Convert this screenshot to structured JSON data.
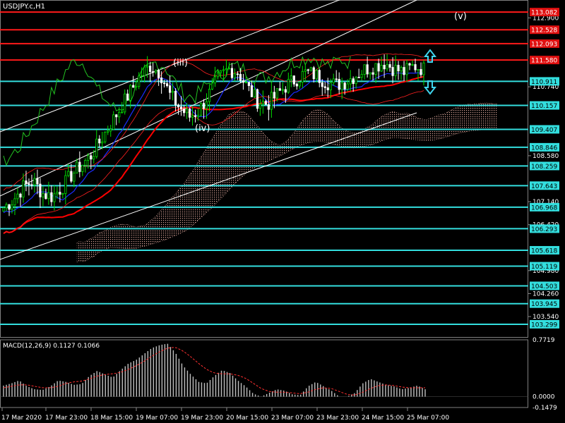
{
  "symbol": "USDJPY.c,H1",
  "chart_data": {
    "type": "candlestick",
    "title": "USDJPY.c,H1",
    "ylim": [
      102.9,
      113.35
    ],
    "y_ticks": [
      {
        "value": 112.9,
        "label": "112.900"
      },
      {
        "value": 110.74,
        "label": "110.740"
      },
      {
        "value": 108.58,
        "label": "108.580"
      },
      {
        "value": 107.14,
        "label": "107.140"
      },
      {
        "value": 106.42,
        "label": "106.420"
      },
      {
        "value": 104.98,
        "label": "104.980"
      },
      {
        "value": 104.26,
        "label": "104.260"
      },
      {
        "value": 103.54,
        "label": "103.540"
      }
    ],
    "red_levels": [
      {
        "value": 113.082,
        "label": "113.082"
      },
      {
        "value": 112.528,
        "label": "112.528"
      },
      {
        "value": 112.093,
        "label": "112.093"
      },
      {
        "value": 111.58,
        "label": "111.580"
      }
    ],
    "cyan_levels": [
      {
        "value": 110.911,
        "label": "110.911"
      },
      {
        "value": 110.157,
        "label": "110.157"
      },
      {
        "value": 109.407,
        "label": "109.407"
      },
      {
        "value": 108.846,
        "label": "108.846"
      },
      {
        "value": 108.259,
        "label": "108.259"
      },
      {
        "value": 107.643,
        "label": "107.643"
      },
      {
        "value": 106.968,
        "label": "106.968"
      },
      {
        "value": 106.293,
        "label": "106.293"
      },
      {
        "value": 105.618,
        "label": "105.618"
      },
      {
        "value": 105.119,
        "label": "105.119"
      },
      {
        "value": 104.503,
        "label": "104.503"
      },
      {
        "value": 103.945,
        "label": "103.945"
      },
      {
        "value": 103.299,
        "label": "103.299"
      }
    ],
    "wave_labels": [
      "(iii)",
      "(iv)",
      "(v)"
    ],
    "x_tick_labels": [
      "17 Mar 2020",
      "17 Mar 23:00",
      "18 Mar 15:00",
      "19 Mar 07:00",
      "19 Mar 23:00",
      "20 Mar 15:00",
      "23 Mar 07:00",
      "23 Mar 23:00",
      "24 Mar 15:00",
      "25 Mar 07:00"
    ],
    "price_path": [
      106.95,
      107.2,
      107.6,
      107.8,
      107.4,
      107.3,
      107.6,
      108.0,
      108.3,
      108.6,
      109.1,
      109.6,
      110.1,
      110.6,
      111.1,
      111.4,
      111.2,
      110.5,
      110.1,
      109.8,
      110.0,
      110.5,
      111.0,
      111.3,
      111.2,
      110.7,
      110.3,
      110.2,
      110.5,
      110.8,
      111.0,
      111.2,
      111.1,
      110.9,
      110.8,
      110.9,
      111.1,
      111.3,
      111.4,
      111.5,
      111.3,
      111.2,
      111.4,
      111.3
    ],
    "colors": {
      "candle_up": "#00e000",
      "candle_down": "#ffffff",
      "red_level": "#ff1a1a",
      "cyan_level": "#33dede",
      "channel": "#ffffff",
      "ma_red": "#ff0000",
      "ma_blue": "#1a2cff",
      "bands": "#ff2020",
      "chikou": "#22c422",
      "cloud": "#d9a59a",
      "macd_hist": "#c0c0c0",
      "macd_signal": "#ff3030",
      "arrow": "#3fd5ee",
      "price_label_bg": "#e01010",
      "cyan_label_bg": "#33dede",
      "grid": "#3a3a3a"
    },
    "macd": {
      "label": "MACD(12,26,9) 0.1127 0.1066",
      "ylim": [
        -0.1479,
        0.7719
      ],
      "y_ticks": [
        {
          "value": 0.7719,
          "label": "0.7719"
        },
        {
          "value": 0.0,
          "label": "0.0000"
        },
        {
          "value": -0.1479,
          "label": "-0.1479"
        }
      ],
      "histogram_path": [
        0.15,
        0.18,
        0.22,
        0.14,
        0.1,
        0.09,
        0.14,
        0.22,
        0.2,
        0.16,
        0.17,
        0.28,
        0.35,
        0.3,
        0.26,
        0.36,
        0.45,
        0.5,
        0.58,
        0.66,
        0.7,
        0.72,
        0.6,
        0.42,
        0.3,
        0.2,
        0.18,
        0.28,
        0.36,
        0.32,
        0.22,
        0.14,
        0.04,
        0.0,
        0.05,
        0.1,
        0.08,
        0.03,
        0.02,
        0.14,
        0.2,
        0.14,
        0.08,
        0.0,
        0.0,
        0.05,
        0.18,
        0.24,
        0.2,
        0.16,
        0.14,
        0.1,
        0.12,
        0.15,
        0.1
      ],
      "signal_path": [
        0.12,
        0.14,
        0.16,
        0.16,
        0.14,
        0.12,
        0.12,
        0.14,
        0.18,
        0.2,
        0.21,
        0.24,
        0.28,
        0.3,
        0.31,
        0.33,
        0.37,
        0.42,
        0.48,
        0.55,
        0.61,
        0.66,
        0.67,
        0.62,
        0.54,
        0.45,
        0.37,
        0.32,
        0.31,
        0.31,
        0.29,
        0.25,
        0.18,
        0.11,
        0.07,
        0.06,
        0.06,
        0.05,
        0.04,
        0.06,
        0.1,
        0.12,
        0.11,
        0.07,
        0.03,
        0.02,
        0.06,
        0.11,
        0.15,
        0.16,
        0.15,
        0.13,
        0.12,
        0.12,
        0.12
      ]
    }
  }
}
